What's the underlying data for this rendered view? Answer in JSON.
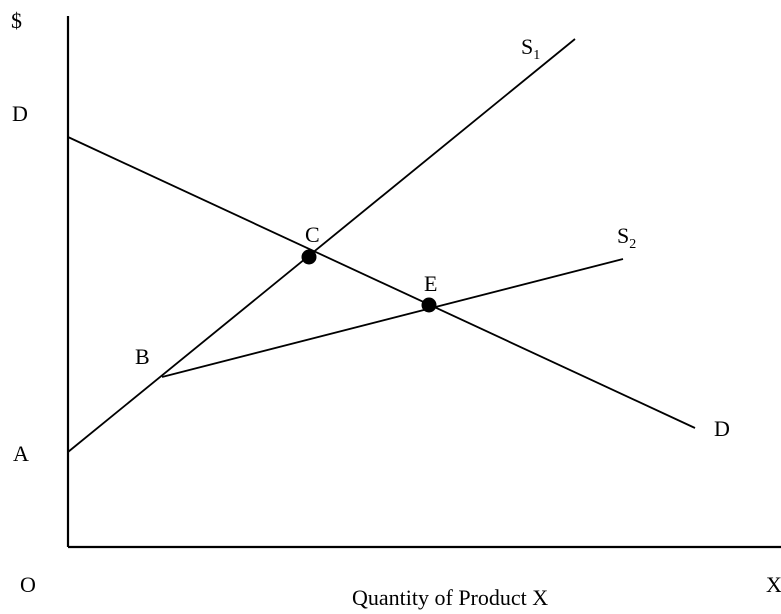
{
  "axes": {
    "y_label": "$",
    "origin_label": "O",
    "x_end_label": "X",
    "x_title": "Quantity of Product X"
  },
  "points": {
    "D_intercept": "D",
    "A_intercept": "A",
    "B": "B",
    "C": "C",
    "E": "E"
  },
  "curves": {
    "S1": {
      "main": "S",
      "sub": "1"
    },
    "S2": {
      "main": "S",
      "sub": "2"
    },
    "D": "D"
  }
}
